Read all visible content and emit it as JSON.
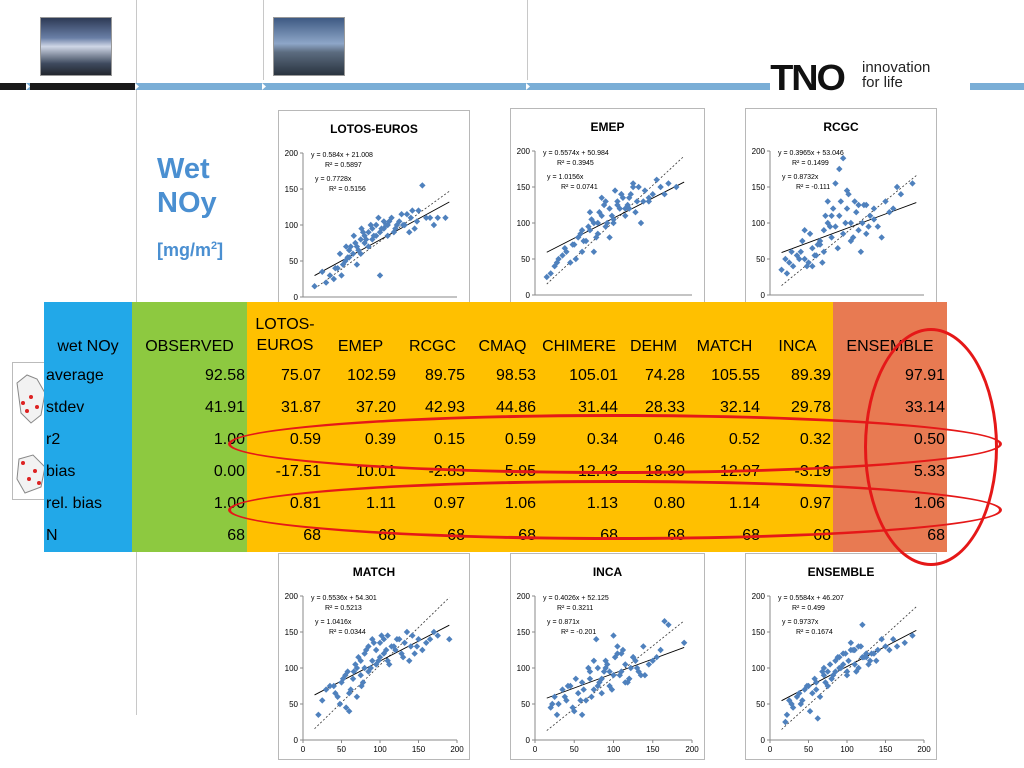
{
  "page": {
    "title_line1": "Wet",
    "title_line2": "NOy",
    "unit_open": "[mg/m",
    "unit_sup": "2",
    "unit_close": "]"
  },
  "brand": {
    "wordmark": "TNO",
    "tagline_line1": "innovation",
    "tagline_line2": "for life",
    "band_color": "#7aaed6",
    "title_color": "#4a8fd1"
  },
  "colors": {
    "label_col": "#22a8e8",
    "observed_col": "#8dc940",
    "model_col": "#ffc000",
    "ensemble_col": "#e87a52",
    "highlight_ring": "#e51818",
    "scatter_points": "#4f81bd"
  },
  "table": {
    "headers": [
      "wet NOy",
      "OBSERVED",
      "LOTOS-EUROS",
      "EMEP",
      "RCGC",
      "CMAQ",
      "CHIMERE",
      "DEHM",
      "MATCH",
      "INCA",
      "ENSEMBLE"
    ],
    "rows": [
      {
        "label": "average",
        "values": [
          "92.58",
          "75.07",
          "102.59",
          "89.75",
          "98.53",
          "105.01",
          "74.28",
          "105.55",
          "89.39",
          "97.91"
        ]
      },
      {
        "label": "stdev",
        "values": [
          "41.91",
          "31.87",
          "37.20",
          "42.93",
          "44.86",
          "31.44",
          "28.33",
          "32.14",
          "29.78",
          "33.14"
        ]
      },
      {
        "label": "r2",
        "values": [
          "1.00",
          "0.59",
          "0.39",
          "0.15",
          "0.59",
          "0.34",
          "0.46",
          "0.52",
          "0.32",
          "0.50"
        ]
      },
      {
        "label": "bias",
        "values": [
          "0.00",
          "-17.51",
          "10.01",
          "-2.83",
          "5.95",
          "12.43",
          "-18.30",
          "12.97",
          "-3.19",
          "5.33"
        ]
      },
      {
        "label": "rel. bias",
        "values": [
          "1.00",
          "0.81",
          "1.11",
          "0.97",
          "1.06",
          "1.13",
          "0.80",
          "1.14",
          "0.97",
          "1.06"
        ]
      },
      {
        "label": "N",
        "values": [
          "68",
          "68",
          "68",
          "68",
          "68",
          "68",
          "68",
          "68",
          "68",
          "68"
        ]
      }
    ]
  },
  "chart_data": [
    {
      "type": "scatter",
      "title": "LOTOS-EUROS",
      "xlim": [
        0,
        200
      ],
      "ylim": [
        0,
        200
      ],
      "xticks": [],
      "yticks": [
        "0",
        "50",
        "100",
        "150",
        "200"
      ],
      "equations": [
        "y = 0.584x + 21.008",
        "R² = 0.5897",
        "y = 0.7728x",
        "R² = 0.5156"
      ],
      "fit": {
        "slope": 0.584,
        "intercept": 21.008
      },
      "fit0": {
        "slope": 0.7728
      },
      "x": [
        15,
        30,
        40,
        45,
        50,
        55,
        60,
        60,
        65,
        70,
        70,
        75,
        75,
        80,
        80,
        85,
        85,
        90,
        90,
        95,
        95,
        100,
        100,
        105,
        105,
        110,
        110,
        115,
        120,
        125,
        130,
        135,
        140,
        145,
        150,
        160,
        175,
        185,
        25,
        35,
        42,
        52,
        58,
        62,
        68,
        72,
        78,
        82,
        88,
        92,
        98,
        102,
        108,
        112,
        118,
        122,
        128,
        132,
        138,
        142,
        148,
        155,
        165,
        170,
        48,
        56,
        66,
        76
      ],
      "y": [
        15,
        20,
        25,
        40,
        30,
        50,
        55,
        65,
        60,
        70,
        45,
        80,
        60,
        85,
        75,
        90,
        70,
        95,
        80,
        100,
        85,
        90,
        30,
        95,
        105,
        100,
        85,
        110,
        95,
        105,
        100,
        115,
        110,
        95,
        120,
        110,
        110,
        110,
        35,
        30,
        40,
        45,
        55,
        70,
        75,
        65,
        90,
        80,
        100,
        85,
        110,
        95,
        100,
        105,
        90,
        100,
        115,
        100,
        90,
        120,
        105,
        155,
        110,
        100,
        60,
        70,
        85,
        95
      ]
    },
    {
      "type": "scatter",
      "title": "EMEP",
      "xlim": [
        0,
        200
      ],
      "ylim": [
        0,
        200
      ],
      "xticks": [],
      "yticks": [
        "0",
        "50",
        "100",
        "150",
        "200"
      ],
      "equations": [
        "y = 0.5574x + 50.984",
        "R² = 0.3945",
        "y = 1.0156x",
        "R² = 0.0741"
      ],
      "fit": {
        "slope": 0.5574,
        "intercept": 50.984
      },
      "fit0": {
        "slope": 1.0156
      },
      "x": [
        15,
        25,
        30,
        35,
        40,
        45,
        50,
        55,
        60,
        65,
        70,
        75,
        80,
        85,
        90,
        95,
        100,
        105,
        110,
        115,
        120,
        125,
        130,
        140,
        150,
        160,
        170,
        180,
        20,
        28,
        38,
        48,
        52,
        58,
        62,
        68,
        72,
        78,
        82,
        88,
        92,
        98,
        102,
        108,
        112,
        118,
        122,
        128,
        132,
        138,
        145,
        155,
        165,
        60,
        70,
        80,
        90,
        100,
        110,
        120,
        75,
        85,
        95,
        105,
        115,
        125,
        135,
        145
      ],
      "y": [
        25,
        40,
        50,
        55,
        60,
        45,
        70,
        80,
        60,
        75,
        90,
        100,
        85,
        110,
        95,
        120,
        100,
        130,
        140,
        120,
        135,
        150,
        130,
        145,
        140,
        150,
        155,
        150,
        30,
        45,
        65,
        70,
        50,
        85,
        75,
        95,
        105,
        80,
        115,
        125,
        100,
        110,
        145,
        120,
        135,
        125,
        140,
        115,
        150,
        130,
        135,
        160,
        140,
        90,
        115,
        100,
        130,
        105,
        140,
        120,
        60,
        135,
        80,
        125,
        110,
        155,
        100,
        130
      ]
    },
    {
      "type": "scatter",
      "title": "RCGC",
      "xlim": [
        0,
        200
      ],
      "ylim": [
        0,
        200
      ],
      "xticks": [],
      "yticks": [
        "0",
        "50",
        "100",
        "150",
        "200"
      ],
      "equations": [
        "y = 0.3965x + 53.046",
        "R² = 0.1499",
        "y = 0.8732x",
        "R² = -0.111"
      ],
      "fit": {
        "slope": 0.3965,
        "intercept": 53.046
      },
      "fit0": {
        "slope": 0.8732
      },
      "x": [
        15,
        20,
        25,
        30,
        35,
        40,
        45,
        50,
        55,
        60,
        65,
        70,
        75,
        80,
        85,
        90,
        95,
        100,
        105,
        110,
        115,
        120,
        125,
        130,
        140,
        150,
        160,
        170,
        185,
        22,
        28,
        38,
        42,
        48,
        52,
        58,
        62,
        68,
        72,
        78,
        82,
        88,
        92,
        98,
        102,
        108,
        112,
        118,
        122,
        128,
        135,
        145,
        155,
        165,
        45,
        55,
        65,
        75,
        85,
        95,
        105,
        115,
        125,
        135,
        70,
        80,
        90,
        100
      ],
      "y": [
        35,
        50,
        45,
        40,
        55,
        60,
        50,
        45,
        65,
        55,
        70,
        90,
        100,
        80,
        95,
        110,
        85,
        120,
        75,
        130,
        90,
        100,
        125,
        110,
        95,
        130,
        120,
        140,
        155,
        30,
        60,
        50,
        75,
        40,
        85,
        55,
        70,
        45,
        110,
        95,
        120,
        65,
        130,
        100,
        140,
        80,
        115,
        60,
        125,
        95,
        105,
        80,
        115,
        150,
        90,
        40,
        75,
        130,
        155,
        190,
        100,
        125,
        85,
        120,
        60,
        110,
        175,
        145
      ]
    },
    {
      "type": "scatter",
      "title": "MATCH",
      "xlim": [
        0,
        200
      ],
      "ylim": [
        0,
        200
      ],
      "xticks": [
        "0",
        "50",
        "100",
        "150",
        "200"
      ],
      "yticks": [
        "0",
        "50",
        "100",
        "150",
        "200"
      ],
      "equations": [
        "y = 0.5536x + 54.301",
        "R² = 0.5213",
        "y = 1.0416x",
        "R² = 0.0344"
      ],
      "fit": {
        "slope": 0.5536,
        "intercept": 54.301
      },
      "fit0": {
        "slope": 1.0416
      },
      "x": [
        20,
        30,
        40,
        45,
        50,
        55,
        60,
        60,
        65,
        70,
        70,
        75,
        75,
        80,
        80,
        85,
        85,
        90,
        90,
        95,
        95,
        100,
        100,
        105,
        105,
        110,
        110,
        115,
        120,
        125,
        130,
        135,
        140,
        145,
        150,
        160,
        175,
        190,
        25,
        35,
        42,
        52,
        58,
        62,
        68,
        72,
        78,
        82,
        88,
        92,
        98,
        102,
        108,
        112,
        118,
        122,
        128,
        132,
        138,
        142,
        148,
        155,
        165,
        170,
        48,
        56,
        66,
        76
      ],
      "y": [
        35,
        70,
        75,
        60,
        80,
        90,
        40,
        65,
        85,
        100,
        60,
        110,
        90,
        120,
        100,
        130,
        95,
        140,
        110,
        125,
        105,
        135,
        115,
        140,
        120,
        110,
        145,
        130,
        125,
        140,
        115,
        150,
        130,
        120,
        140,
        135,
        145,
        140,
        55,
        75,
        65,
        85,
        95,
        70,
        105,
        115,
        80,
        125,
        100,
        135,
        110,
        145,
        125,
        105,
        130,
        140,
        120,
        135,
        110,
        145,
        130,
        125,
        140,
        150,
        50,
        45,
        95,
        75
      ]
    },
    {
      "type": "scatter",
      "title": "INCA",
      "xlim": [
        0,
        200
      ],
      "ylim": [
        0,
        200
      ],
      "xticks": [
        "0",
        "50",
        "100",
        "150",
        "200"
      ],
      "yticks": [
        "0",
        "50",
        "100",
        "150",
        "200"
      ],
      "equations": [
        "y = 0.4026x + 52.125",
        "R² = 0.3211",
        "y = 0.871x",
        "R² = -0.201"
      ],
      "fit": {
        "slope": 0.4026,
        "intercept": 52.125
      },
      "fit0": {
        "slope": 0.871
      },
      "x": [
        20,
        25,
        30,
        35,
        40,
        45,
        50,
        55,
        60,
        65,
        70,
        75,
        80,
        85,
        90,
        95,
        100,
        105,
        110,
        115,
        120,
        125,
        130,
        140,
        150,
        160,
        170,
        190,
        22,
        28,
        38,
        42,
        48,
        52,
        58,
        62,
        68,
        72,
        78,
        82,
        88,
        92,
        98,
        102,
        108,
        112,
        118,
        122,
        128,
        132,
        138,
        145,
        155,
        165,
        60,
        70,
        80,
        90,
        100,
        110,
        120,
        75,
        85,
        95,
        105,
        115,
        125,
        135
      ],
      "y": [
        45,
        60,
        50,
        70,
        55,
        75,
        40,
        65,
        80,
        55,
        95,
        70,
        100,
        85,
        110,
        75,
        90,
        120,
        95,
        105,
        85,
        115,
        100,
        90,
        110,
        125,
        160,
        135,
        50,
        35,
        60,
        75,
        45,
        85,
        55,
        70,
        100,
        60,
        140,
        80,
        95,
        105,
        70,
        115,
        90,
        125,
        80,
        100,
        110,
        95,
        130,
        105,
        115,
        165,
        35,
        85,
        75,
        100,
        145,
        120,
        85,
        110,
        65,
        95,
        130,
        80,
        115,
        90
      ]
    },
    {
      "type": "scatter",
      "title": "ENSEMBLE",
      "xlim": [
        0,
        200
      ],
      "ylim": [
        0,
        200
      ],
      "xticks": [
        "0",
        "50",
        "100",
        "150",
        "200"
      ],
      "yticks": [
        "0",
        "50",
        "100",
        "150",
        "200"
      ],
      "equations": [
        "y = 0.5584x + 46.207",
        "R² = 0.499",
        "y = 0.9737x",
        "R² = 0.1674"
      ],
      "fit": {
        "slope": 0.5584,
        "intercept": 46.207
      },
      "fit0": {
        "slope": 0.9737
      },
      "x": [
        20,
        25,
        30,
        35,
        40,
        45,
        50,
        55,
        60,
        65,
        70,
        75,
        80,
        85,
        90,
        95,
        100,
        105,
        110,
        115,
        120,
        125,
        130,
        140,
        150,
        160,
        175,
        185,
        22,
        28,
        38,
        42,
        48,
        52,
        58,
        62,
        68,
        72,
        78,
        82,
        88,
        92,
        98,
        102,
        108,
        112,
        118,
        122,
        128,
        132,
        138,
        145,
        155,
        165,
        60,
        70,
        80,
        90,
        100,
        110,
        120,
        75,
        85,
        95,
        105,
        115,
        125,
        135
      ],
      "y": [
        25,
        55,
        45,
        60,
        50,
        70,
        75,
        65,
        80,
        60,
        90,
        95,
        85,
        110,
        100,
        120,
        95,
        125,
        105,
        130,
        115,
        120,
        110,
        125,
        130,
        140,
        135,
        145,
        35,
        50,
        65,
        55,
        75,
        40,
        85,
        30,
        95,
        80,
        105,
        90,
        115,
        100,
        120,
        110,
        125,
        95,
        130,
        115,
        105,
        120,
        110,
        140,
        125,
        130,
        70,
        100,
        85,
        115,
        90,
        125,
        160,
        75,
        95,
        105,
        135,
        100,
        115,
        120
      ]
    }
  ]
}
